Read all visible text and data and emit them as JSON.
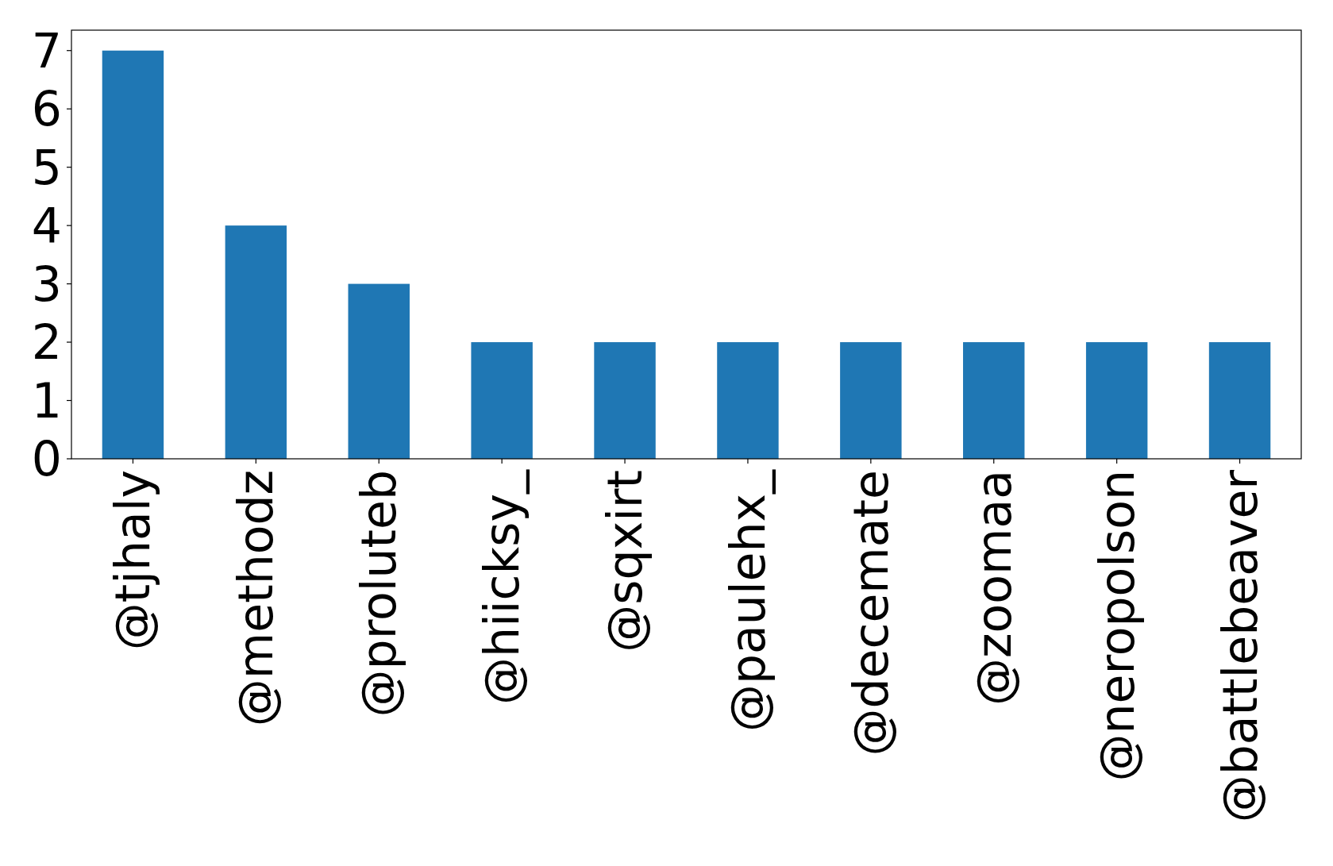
{
  "chart_data": {
    "type": "bar",
    "categories": [
      "@tjhaly",
      "@methodz",
      "@proluteb",
      "@hiicksy_",
      "@sqxirt",
      "@paulehx_",
      "@decemate",
      "@zoomaa",
      "@neropolson",
      "@battlebeaver"
    ],
    "values": [
      7,
      4,
      3,
      2,
      2,
      2,
      2,
      2,
      2,
      2
    ],
    "color": "#1f77b4",
    "ylim": [
      0,
      7.35
    ],
    "yticks": [
      0,
      1,
      2,
      3,
      4,
      5,
      6,
      7
    ]
  }
}
